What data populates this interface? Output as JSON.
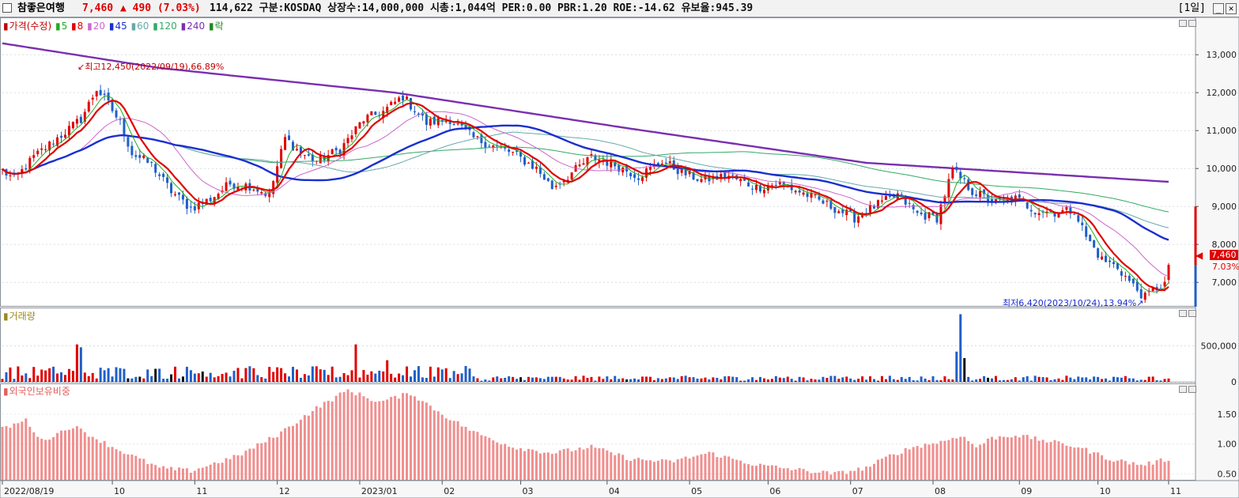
{
  "header": {
    "name": "참좋은여행",
    "price": "7,460",
    "change": "▲ 490 (7.03%)",
    "info": "114,622  구분:KOSDAQ 상장수:14,000,000 시총:1,044억 PER:0.00 PBR:1.20 ROE:-14.62 유보율:945.39",
    "period": "[1일]",
    "btn_min": "_",
    "btn_close": "✕"
  },
  "legend": {
    "price": [
      {
        "text": "가격(수정)",
        "color": "#c00000"
      },
      {
        "text": "5",
        "color": "#22aa22"
      },
      {
        "text": "8",
        "color": "#e00000"
      },
      {
        "text": "20",
        "color": "#cc66cc"
      },
      {
        "text": "45",
        "color": "#1a2fd0"
      },
      {
        "text": "60",
        "color": "#66aaaa"
      },
      {
        "text": "120",
        "color": "#33aa66"
      },
      {
        "text": "240",
        "color": "#7a2fb0"
      },
      {
        "text": "락",
        "color": "#228822"
      }
    ],
    "volume": "거래량",
    "foreign": "외국인보유비중"
  },
  "annotations": {
    "high": "최고12,450(2022/09/19),66.89%",
    "low": "최저6,420(2023/10/24),13.94%"
  },
  "pricetag": {
    "price": "7,460",
    "pct": "7.03%"
  },
  "chart_data": [
    {
      "type": "candlestick",
      "title": "가격(수정)",
      "ylim": [
        6400,
        13400
      ],
      "yticks": [
        7000,
        8000,
        9000,
        10000,
        11000,
        12000,
        13000
      ],
      "ytick_labels": [
        "7,000",
        "8,000",
        "9,000",
        "10,000",
        "11,000",
        "12,000",
        "13,000"
      ],
      "xlabels": [
        "2022/08/19",
        "10",
        "11",
        "12",
        "2023/01",
        "02",
        "03",
        "04",
        "05",
        "06",
        "07",
        "08",
        "09",
        "10",
        "11"
      ],
      "close_anchors": [
        [
          0,
          9950
        ],
        [
          3,
          9700
        ],
        [
          8,
          10300
        ],
        [
          14,
          10800
        ],
        [
          20,
          11300
        ],
        [
          24,
          12100
        ],
        [
          27,
          11700
        ],
        [
          30,
          11200
        ],
        [
          33,
          10400
        ],
        [
          38,
          10100
        ],
        [
          43,
          9400
        ],
        [
          48,
          8950
        ],
        [
          53,
          9200
        ],
        [
          58,
          9600
        ],
        [
          63,
          9550
        ],
        [
          68,
          9300
        ],
        [
          72,
          10800
        ],
        [
          76,
          10400
        ],
        [
          80,
          10200
        ],
        [
          86,
          10500
        ],
        [
          92,
          11300
        ],
        [
          97,
          11500
        ],
        [
          102,
          11900
        ],
        [
          108,
          11200
        ],
        [
          114,
          11300
        ],
        [
          120,
          10800
        ],
        [
          125,
          10600
        ],
        [
          130,
          10400
        ],
        [
          136,
          10000
        ],
        [
          140,
          9500
        ],
        [
          144,
          9800
        ],
        [
          150,
          10300
        ],
        [
          156,
          10100
        ],
        [
          162,
          9800
        ],
        [
          168,
          10200
        ],
        [
          173,
          9900
        ],
        [
          178,
          9700
        ],
        [
          185,
          9800
        ],
        [
          192,
          9500
        ],
        [
          198,
          9600
        ],
        [
          205,
          9300
        ],
        [
          212,
          8950
        ],
        [
          217,
          8700
        ],
        [
          222,
          9000
        ],
        [
          228,
          9300
        ],
        [
          233,
          8800
        ],
        [
          238,
          8700
        ],
        [
          242,
          9950
        ],
        [
          247,
          9400
        ],
        [
          253,
          9100
        ],
        [
          258,
          9200
        ],
        [
          263,
          8900
        ],
        [
          268,
          8850
        ],
        [
          273,
          8900
        ],
        [
          276,
          8200
        ],
        [
          280,
          7600
        ],
        [
          284,
          7400
        ],
        [
          288,
          6900
        ],
        [
          291,
          6600
        ],
        [
          293,
          6800
        ],
        [
          296,
          6970
        ],
        [
          297,
          7460
        ]
      ],
      "ma240_anchors": [
        [
          0,
          13300
        ],
        [
          40,
          12650
        ],
        [
          100,
          12000
        ],
        [
          160,
          11050
        ],
        [
          220,
          10150
        ],
        [
          297,
          9650
        ]
      ],
      "last_close": 7460,
      "low": 6420,
      "high": 12450
    },
    {
      "type": "bar",
      "title": "거래량",
      "ylim": [
        0,
        1000000
      ],
      "yticks": [
        0,
        500000
      ],
      "ytick_labels": [
        "0",
        "500,000"
      ],
      "spikes": [
        [
          19,
          520000
        ],
        [
          20,
          480000
        ],
        [
          90,
          520000
        ],
        [
          98,
          300000
        ],
        [
          243,
          420000
        ],
        [
          244,
          940000
        ],
        [
          245,
          330000
        ]
      ]
    },
    {
      "type": "bar",
      "title": "외국인보유비중",
      "ylim": [
        0.4,
        2.0
      ],
      "yticks": [
        0.5,
        1.0,
        1.5
      ],
      "ytick_labels": [
        "0.50",
        "1.00",
        "1.50"
      ],
      "anchors": [
        [
          0,
          1.25
        ],
        [
          6,
          1.4
        ],
        [
          10,
          1.05
        ],
        [
          18,
          1.3
        ],
        [
          28,
          0.95
        ],
        [
          40,
          0.6
        ],
        [
          48,
          0.55
        ],
        [
          60,
          0.8
        ],
        [
          70,
          1.15
        ],
        [
          80,
          1.6
        ],
        [
          88,
          1.9
        ],
        [
          96,
          1.7
        ],
        [
          104,
          1.85
        ],
        [
          112,
          1.5
        ],
        [
          120,
          1.2
        ],
        [
          130,
          0.95
        ],
        [
          140,
          0.85
        ],
        [
          150,
          0.95
        ],
        [
          160,
          0.75
        ],
        [
          170,
          0.7
        ],
        [
          180,
          0.85
        ],
        [
          192,
          0.65
        ],
        [
          205,
          0.55
        ],
        [
          212,
          0.5
        ],
        [
          220,
          0.6
        ],
        [
          226,
          0.8
        ],
        [
          232,
          0.95
        ],
        [
          240,
          1.05
        ],
        [
          244,
          1.15
        ],
        [
          248,
          0.95
        ],
        [
          252,
          1.1
        ],
        [
          258,
          1.15
        ],
        [
          266,
          1.05
        ],
        [
          274,
          0.95
        ],
        [
          282,
          0.75
        ],
        [
          290,
          0.65
        ],
        [
          294,
          0.7
        ],
        [
          297,
          0.75
        ]
      ]
    }
  ]
}
